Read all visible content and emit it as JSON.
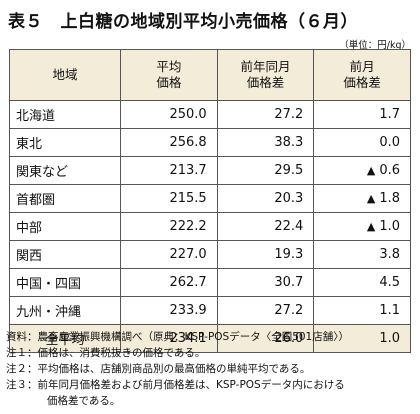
{
  "title": "表５　上白糖の地域別平均小売価格（６月）",
  "unit": "（単位：円/kg）",
  "headers": {
    "region": "地域",
    "avg_line1": "平均",
    "avg_line2": "価格",
    "yoy_line1": "前年同月",
    "yoy_line2": "価格差",
    "mom_line1": "前月",
    "mom_line2": "価格差"
  },
  "rows": [
    {
      "region": "北海道",
      "avg": "250.0",
      "yoy": "27.2",
      "mom_sign": "",
      "mom": "1.7"
    },
    {
      "region": "東北",
      "avg": "256.8",
      "yoy": "38.3",
      "mom_sign": "",
      "mom": "0.0"
    },
    {
      "region": "関東など",
      "avg": "213.7",
      "yoy": "29.5",
      "mom_sign": "▲",
      "mom": "0.6"
    },
    {
      "region": "首都圏",
      "avg": "215.5",
      "yoy": "20.3",
      "mom_sign": "▲",
      "mom": "1.8"
    },
    {
      "region": "中部",
      "avg": "222.2",
      "yoy": "22.4",
      "mom_sign": "▲",
      "mom": "1.0"
    },
    {
      "region": "関西",
      "avg": "227.0",
      "yoy": "19.3",
      "mom_sign": "",
      "mom": "3.8"
    },
    {
      "region": "中国・四国",
      "avg": "262.7",
      "yoy": "30.7",
      "mom_sign": "",
      "mom": "4.5"
    },
    {
      "region": "九州・沖縄",
      "avg": "233.9",
      "yoy": "27.2",
      "mom_sign": "",
      "mom": "1.1"
    },
    {
      "region": "全平均",
      "avg": "234.1",
      "yoy": "26.0",
      "mom_sign": "",
      "mom": "1.0"
    }
  ],
  "notes": {
    "source": "資料：農畜産業振興機構調べ（原典：KSP-POSデータ〈全国501店舗〉）",
    "note1": "注１：価格は、消費税抜きの価格である。",
    "note2": "注２：平均価格は、店舗別商品別の最高価格の単純平均である。",
    "note3_line1": "注３：前年同月価格差および前月価格差は、KSP-POSデータ内における",
    "note3_line2": "価格差である。"
  }
}
